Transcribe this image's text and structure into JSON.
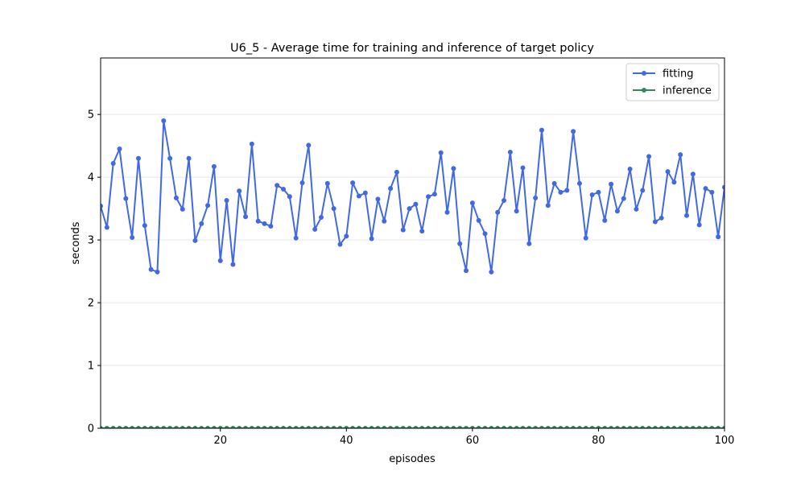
{
  "chart_data": {
    "type": "line",
    "title": "U6_5 - Average time for training and inference of target policy",
    "xlabel": "episodes",
    "ylabel": "seconds",
    "xlim": [
      1,
      100
    ],
    "ylim": [
      0,
      5.9
    ],
    "xticks": [
      20,
      40,
      60,
      80,
      100
    ],
    "yticks": [
      0,
      1,
      2,
      3,
      4,
      5
    ],
    "grid": "horizontal",
    "legend_position": "top-right",
    "x": [
      1,
      2,
      3,
      4,
      5,
      6,
      7,
      8,
      9,
      10,
      11,
      12,
      13,
      14,
      15,
      16,
      17,
      18,
      19,
      20,
      21,
      22,
      23,
      24,
      25,
      26,
      27,
      28,
      29,
      30,
      31,
      32,
      33,
      34,
      35,
      36,
      37,
      38,
      39,
      40,
      41,
      42,
      43,
      44,
      45,
      46,
      47,
      48,
      49,
      50,
      51,
      52,
      53,
      54,
      55,
      56,
      57,
      58,
      59,
      60,
      61,
      62,
      63,
      64,
      65,
      66,
      67,
      68,
      69,
      70,
      71,
      72,
      73,
      74,
      75,
      76,
      77,
      78,
      79,
      80,
      81,
      82,
      83,
      84,
      85,
      86,
      87,
      88,
      89,
      90,
      91,
      92,
      93,
      94,
      95,
      96,
      97,
      98,
      99,
      100
    ],
    "series": [
      {
        "name": "fitting",
        "color": "#4169e1",
        "values": [
          3.54,
          3.2,
          4.22,
          4.45,
          3.66,
          3.04,
          4.3,
          3.23,
          2.53,
          2.49,
          4.9,
          4.3,
          3.67,
          3.49,
          4.3,
          2.99,
          3.26,
          3.55,
          4.17,
          2.67,
          3.63,
          2.61,
          3.78,
          3.37,
          4.53,
          3.3,
          3.26,
          3.22,
          3.87,
          3.81,
          3.69,
          3.03,
          3.91,
          4.51,
          3.17,
          3.36,
          3.9,
          3.5,
          2.93,
          3.06,
          3.91,
          3.7,
          3.75,
          3.02,
          3.65,
          3.3,
          3.82,
          4.08,
          3.16,
          3.5,
          3.57,
          3.14,
          3.69,
          3.73,
          4.39,
          3.44,
          4.14,
          2.94,
          2.51,
          3.59,
          3.31,
          3.1,
          2.49,
          3.44,
          3.63,
          4.4,
          3.46,
          4.15,
          2.94,
          3.67,
          4.75,
          3.55,
          3.9,
          3.76,
          3.79,
          4.73,
          3.9,
          3.03,
          3.72,
          3.76,
          3.31,
          3.89,
          3.46,
          3.66,
          4.13,
          3.49,
          3.79,
          4.33,
          3.29,
          3.35,
          4.09,
          3.92,
          4.36,
          3.39,
          4.05,
          3.24,
          3.82,
          3.76,
          3.05,
          3.84
        ]
      },
      {
        "name": "inference",
        "color": "#2e8b57",
        "values": [
          0.0,
          0.0,
          0.0,
          0.0,
          0.0,
          0.0,
          0.0,
          0.0,
          0.0,
          0.0,
          0.0,
          0.0,
          0.0,
          0.0,
          0.0,
          0.0,
          0.0,
          0.0,
          0.0,
          0.0,
          0.0,
          0.0,
          0.0,
          0.0,
          0.0,
          0.0,
          0.0,
          0.0,
          0.0,
          0.0,
          0.0,
          0.0,
          0.0,
          0.0,
          0.0,
          0.0,
          0.0,
          0.0,
          0.0,
          0.0,
          0.0,
          0.0,
          0.0,
          0.0,
          0.0,
          0.0,
          0.0,
          0.0,
          0.0,
          0.0,
          0.0,
          0.0,
          0.0,
          0.0,
          0.0,
          0.0,
          0.0,
          0.0,
          0.0,
          0.0,
          0.0,
          0.0,
          0.0,
          0.0,
          0.0,
          0.0,
          0.0,
          0.0,
          0.0,
          0.0,
          0.0,
          0.0,
          0.0,
          0.0,
          0.0,
          0.0,
          0.0,
          0.0,
          0.0,
          0.0,
          0.0,
          0.0,
          0.0,
          0.0,
          0.0,
          0.0,
          0.0,
          0.0,
          0.0,
          0.0,
          0.0,
          0.0,
          0.0,
          0.0,
          0.0,
          0.0,
          0.0,
          0.0,
          0.0,
          0.0
        ]
      }
    ]
  }
}
